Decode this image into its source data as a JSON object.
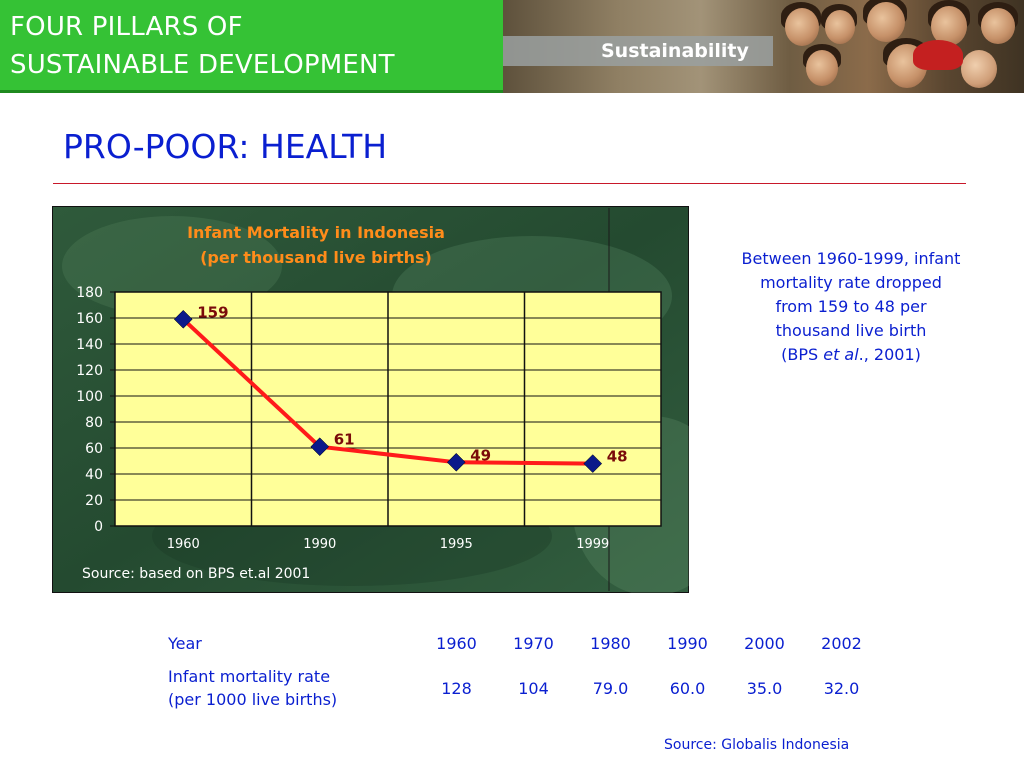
{
  "banner": {
    "line1": "FOUR PILLARS OF",
    "line2": "SUSTAINABLE DEVELOPMENT",
    "photo_text": "Sustainability",
    "green": "#35c235"
  },
  "slide": {
    "title": "PRO-POOR: HEALTH",
    "title_color": "#0a1fd0",
    "rule_color": "#c8182a"
  },
  "chart_data": {
    "type": "line",
    "title": "Infant Mortality in Indonesia",
    "subtitle": "(per thousand live births)",
    "categories": [
      "1960",
      "1990",
      "1995",
      "1999"
    ],
    "series": [
      {
        "values": [
          159,
          61,
          49,
          48
        ],
        "color": "#ff1a1a",
        "marker_color": "#0b1a8a"
      }
    ],
    "data_labels": [
      "159",
      "61",
      "49",
      "48"
    ],
    "y_ticks": [
      "0",
      "20",
      "40",
      "60",
      "80",
      "100",
      "120",
      "140",
      "160",
      "180"
    ],
    "ylim": [
      0,
      180
    ],
    "grid": true,
    "plot_background": "#ffff99",
    "source": "Source: based on BPS et.al 2001",
    "title_color": "#ff8c1a",
    "label_color": "#7a0a0a"
  },
  "note": {
    "line1": "Between 1960-1999, infant",
    "line2": "mortality rate dropped",
    "line3": "from 159 to 48 per",
    "line4": "thousand live birth",
    "cite_pre": "(BPS ",
    "cite_em": "et al",
    "cite_post": "., 2001)"
  },
  "table": {
    "year_label": "Year",
    "years": [
      "1960",
      "1970",
      "1980",
      "1990",
      "2000",
      "2002"
    ],
    "rate_label_1": "Infant mortality rate",
    "rate_label_2": "(per 1000 live births)",
    "rates": [
      "128",
      "104",
      "79.0",
      "60.0",
      "35.0",
      "32.0"
    ],
    "source": "Source: Globalis Indonesia"
  }
}
